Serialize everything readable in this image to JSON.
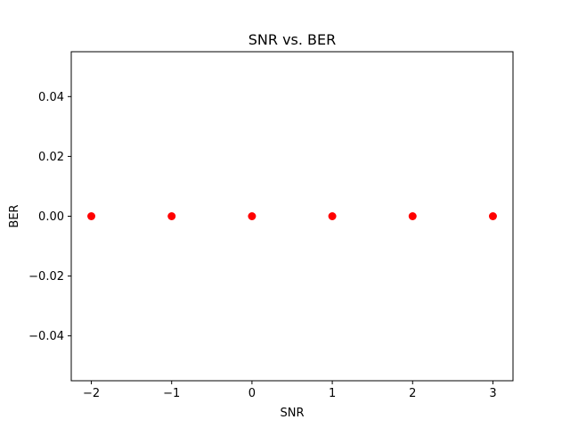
{
  "chart_data": {
    "type": "scatter",
    "title": "SNR vs. BER",
    "xlabel": "SNR",
    "ylabel": "BER",
    "x": [
      -2,
      -1,
      0,
      1,
      2,
      3
    ],
    "y": [
      0,
      0,
      0,
      0,
      0,
      0
    ],
    "xlim": [
      -2.25,
      3.25
    ],
    "ylim": [
      -0.055,
      0.055
    ],
    "xticks": [
      -2,
      -1,
      0,
      1,
      2,
      3
    ],
    "xtick_labels": [
      "−2",
      "−1",
      "0",
      "1",
      "2",
      "3"
    ],
    "yticks": [
      -0.04,
      -0.02,
      0,
      0.02,
      0.04
    ],
    "ytick_labels": [
      "−0.04",
      "−0.02",
      "0.00",
      "0.02",
      "0.04"
    ],
    "marker_color": "#ff0000",
    "grid": false,
    "legend": "none"
  }
}
